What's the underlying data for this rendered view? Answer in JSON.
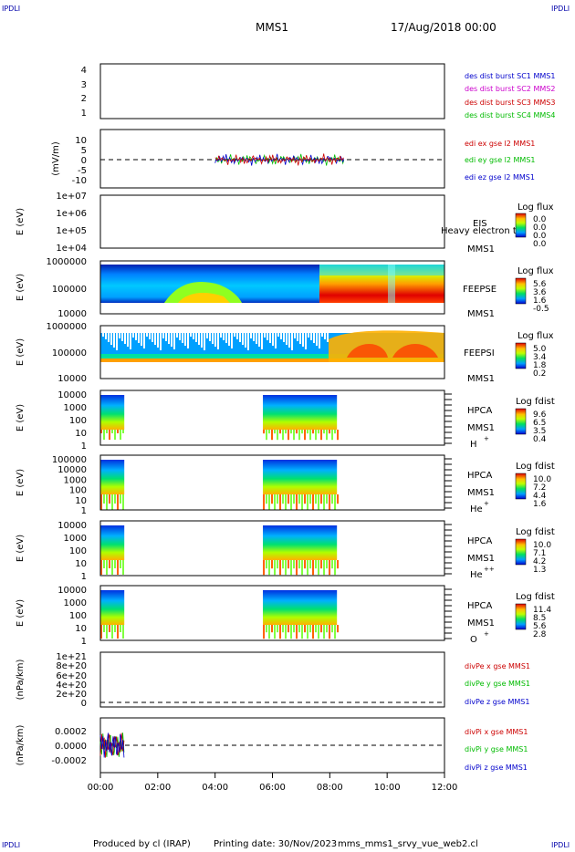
{
  "header": {
    "corner_label": "IPDLI",
    "spacecraft": "MMS1",
    "date": "17/Aug/2018 00:00"
  },
  "footer": {
    "produced_by": "Produced by cl (IRAP)",
    "printing_date": "Printing date: 30/Nov/2023",
    "script": "mms_mms1_srvy_vue_web2.cl"
  },
  "colors": {
    "blue": "#0000cc",
    "magenta": "#cc00cc",
    "red": "#cc0000",
    "green": "#00bb00"
  },
  "chart_data": [
    {
      "type": "line",
      "title": "",
      "ylabel": "",
      "ylim": [
        0.5,
        4.5
      ],
      "yticks": [
        "4",
        "3",
        "2",
        "1"
      ],
      "series": [
        {
          "name": "des dist burst SC1 MMS1",
          "color": "#0000cc",
          "values": []
        },
        {
          "name": "des dist burst SC2 MMS2",
          "color": "#cc00cc",
          "values": []
        },
        {
          "name": "des dist burst SC3 MMS3",
          "color": "#cc0000",
          "values": []
        },
        {
          "name": "des dist burst SC4 MMS4",
          "color": "#00bb00",
          "values": []
        }
      ]
    },
    {
      "type": "line",
      "ylabel": "(mV/m)",
      "ylim": [
        -12,
        12
      ],
      "yticks": [
        "10",
        "5",
        "0",
        "-5",
        "-10"
      ],
      "active_time_range": [
        "04:00",
        "08:30"
      ],
      "series": [
        {
          "name": "edi ex gse l2 MMS1",
          "color": "#cc0000"
        },
        {
          "name": "edi ey gse l2 MMS1",
          "color": "#00bb00"
        },
        {
          "name": "edi ez gse l2 MMS1",
          "color": "#0000cc"
        }
      ]
    },
    {
      "type": "heatmap",
      "ylabel": "E (eV)",
      "yticks": [
        "1e+07",
        "1e+06",
        "1e+05",
        "1e+04"
      ],
      "instrument": "EIS",
      "extra_label": "Heavy electron to",
      "spacecraft": "MMS1",
      "colorbar": {
        "title": "Log flux",
        "ticks": [
          "0.0",
          "0.0",
          "0.0",
          "0.0"
        ]
      }
    },
    {
      "type": "heatmap",
      "ylabel": "E (eV)",
      "yticks": [
        "1000000",
        "100000",
        "10000"
      ],
      "instrument": "FEEPSE",
      "spacecraft": "MMS1",
      "colorbar": {
        "title": "Log flux",
        "ticks": [
          "5.6",
          "3.6",
          "1.6",
          "-0.5"
        ]
      }
    },
    {
      "type": "heatmap",
      "ylabel": "E (eV)",
      "yticks": [
        "1000000",
        "100000",
        "10000"
      ],
      "instrument": "FEEPSI",
      "spacecraft": "MMS1",
      "colorbar": {
        "title": "Log flux",
        "ticks": [
          "5.0",
          "3.4",
          "1.8",
          "0.2"
        ]
      }
    },
    {
      "type": "heatmap",
      "ylabel": "E (eV)",
      "yticks": [
        "10000",
        "1000",
        "100",
        "10",
        "1"
      ],
      "instrument": "HPCA",
      "spacecraft": "MMS1",
      "species": "H",
      "charge": "+",
      "data_time_ranges": [
        [
          "00:00",
          "00:50"
        ],
        [
          "05:40",
          "08:15"
        ]
      ],
      "colorbar": {
        "title": "Log fdist",
        "ticks": [
          "9.6",
          "6.5",
          "3.5",
          "0.4"
        ]
      }
    },
    {
      "type": "heatmap",
      "ylabel": "E (eV)",
      "yticks": [
        "100000",
        "10000",
        "1000",
        "100",
        "10",
        "1"
      ],
      "instrument": "HPCA",
      "spacecraft": "MMS1",
      "species": "He",
      "charge": "+",
      "data_time_ranges": [
        [
          "00:00",
          "00:50"
        ],
        [
          "05:40",
          "08:15"
        ]
      ],
      "colorbar": {
        "title": "Log fdist",
        "ticks": [
          "10.0",
          "7.2",
          "4.4",
          "1.6"
        ]
      }
    },
    {
      "type": "heatmap",
      "ylabel": "E (eV)",
      "yticks": [
        "10000",
        "1000",
        "100",
        "10",
        "1"
      ],
      "instrument": "HPCA",
      "spacecraft": "MMS1",
      "species": "He",
      "charge": "++",
      "data_time_ranges": [
        [
          "00:00",
          "00:50"
        ],
        [
          "05:40",
          "08:15"
        ]
      ],
      "colorbar": {
        "title": "Log fdist",
        "ticks": [
          "10.0",
          "7.1",
          "4.2",
          "1.3"
        ]
      }
    },
    {
      "type": "heatmap",
      "ylabel": "E (eV)",
      "yticks": [
        "10000",
        "1000",
        "100",
        "10",
        "1"
      ],
      "instrument": "HPCA",
      "spacecraft": "MMS1",
      "species": "O",
      "charge": "+",
      "data_time_ranges": [
        [
          "00:00",
          "00:50"
        ],
        [
          "05:40",
          "08:15"
        ]
      ],
      "colorbar": {
        "title": "Log fdist",
        "ticks": [
          "11.4",
          "8.5",
          "5.6",
          "2.8"
        ]
      }
    },
    {
      "type": "line",
      "ylabel": "(nPa/km)",
      "yticks": [
        "1e+21",
        "8e+20",
        "6e+20",
        "4e+20",
        "2e+20",
        "0"
      ],
      "series": [
        {
          "name": "divPe x gse MMS1",
          "color": "#cc0000"
        },
        {
          "name": "divPe y gse MMS1",
          "color": "#00bb00"
        },
        {
          "name": "divPe z gse MMS1",
          "color": "#0000cc"
        }
      ]
    },
    {
      "type": "line",
      "ylabel": "(nPa/km)",
      "yticks": [
        "0.0002",
        "0.0000",
        "-0.0002"
      ],
      "active_time_range": [
        "00:00",
        "00:50"
      ],
      "series": [
        {
          "name": "divPi x gse MMS1",
          "color": "#cc0000"
        },
        {
          "name": "divPi y gse MMS1",
          "color": "#00bb00"
        },
        {
          "name": "divPi z gse MMS1",
          "color": "#0000cc"
        }
      ]
    }
  ],
  "time_axis": {
    "ticks": [
      "00:00",
      "02:00",
      "04:00",
      "06:00",
      "08:00",
      "10:00",
      "12:00"
    ]
  }
}
